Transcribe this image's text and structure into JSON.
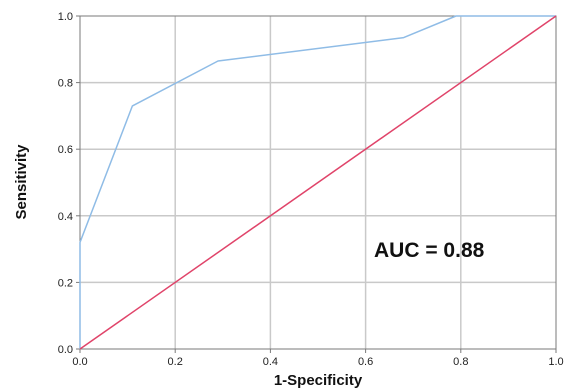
{
  "chart_data": {
    "type": "line",
    "title": "",
    "xlabel": "1-Specificity",
    "ylabel": "Sensitivity",
    "xlim": [
      0,
      1
    ],
    "ylim": [
      0,
      1
    ],
    "x_ticks": [
      "0.0",
      "0.2",
      "0.4",
      "0.6",
      "0.8",
      "1.0"
    ],
    "y_ticks": [
      "0.0",
      "0.2",
      "0.4",
      "0.6",
      "0.8",
      "1.0"
    ],
    "grid": true,
    "series": [
      {
        "color": "#8fbce6",
        "points": [
          [
            0,
            0
          ],
          [
            0,
            0.32
          ],
          [
            0.11,
            0.73
          ],
          [
            0.29,
            0.865
          ],
          [
            0.68,
            0.935
          ],
          [
            0.79,
            1.0
          ],
          [
            1.0,
            1.0
          ]
        ]
      },
      {
        "color": "#e0446a",
        "points": [
          [
            0,
            0
          ],
          [
            1,
            1
          ]
        ]
      }
    ],
    "annotation": "AUC = 0.88"
  }
}
